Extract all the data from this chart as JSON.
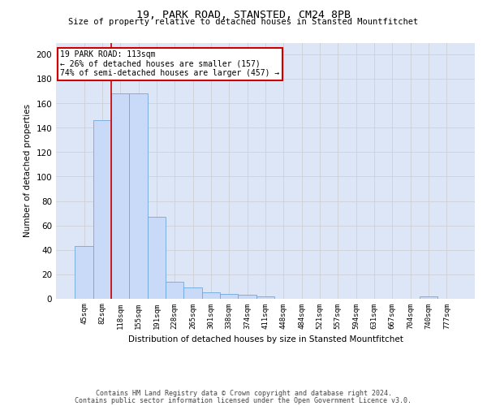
{
  "title1": "19, PARK ROAD, STANSTED, CM24 8PB",
  "title2": "Size of property relative to detached houses in Stansted Mountfitchet",
  "xlabel": "Distribution of detached houses by size in Stansted Mountfitchet",
  "ylabel": "Number of detached properties",
  "footnote1": "Contains HM Land Registry data © Crown copyright and database right 2024.",
  "footnote2": "Contains public sector information licensed under the Open Government Licence v3.0.",
  "bar_labels": [
    "45sqm",
    "82sqm",
    "118sqm",
    "155sqm",
    "191sqm",
    "228sqm",
    "265sqm",
    "301sqm",
    "338sqm",
    "374sqm",
    "411sqm",
    "448sqm",
    "484sqm",
    "521sqm",
    "557sqm",
    "594sqm",
    "631sqm",
    "667sqm",
    "704sqm",
    "740sqm",
    "777sqm"
  ],
  "bar_values": [
    43,
    146,
    168,
    168,
    67,
    14,
    9,
    5,
    4,
    3,
    2,
    0,
    0,
    0,
    0,
    0,
    0,
    0,
    0,
    2,
    0
  ],
  "bar_color": "#c9daf8",
  "bar_edge_color": "#6fa8dc",
  "ylim": [
    0,
    210
  ],
  "yticks": [
    0,
    20,
    40,
    60,
    80,
    100,
    120,
    140,
    160,
    180,
    200
  ],
  "vline_x": 1.5,
  "annotation_text1": "19 PARK ROAD: 113sqm",
  "annotation_text2": "← 26% of detached houses are smaller (157)",
  "annotation_text3": "74% of semi-detached houses are larger (457) →",
  "annotation_box_color": "#ffffff",
  "annotation_box_edge": "#cc0000",
  "vline_color": "#cc0000",
  "grid_color": "#cccccc",
  "bg_color": "#dce6f7"
}
